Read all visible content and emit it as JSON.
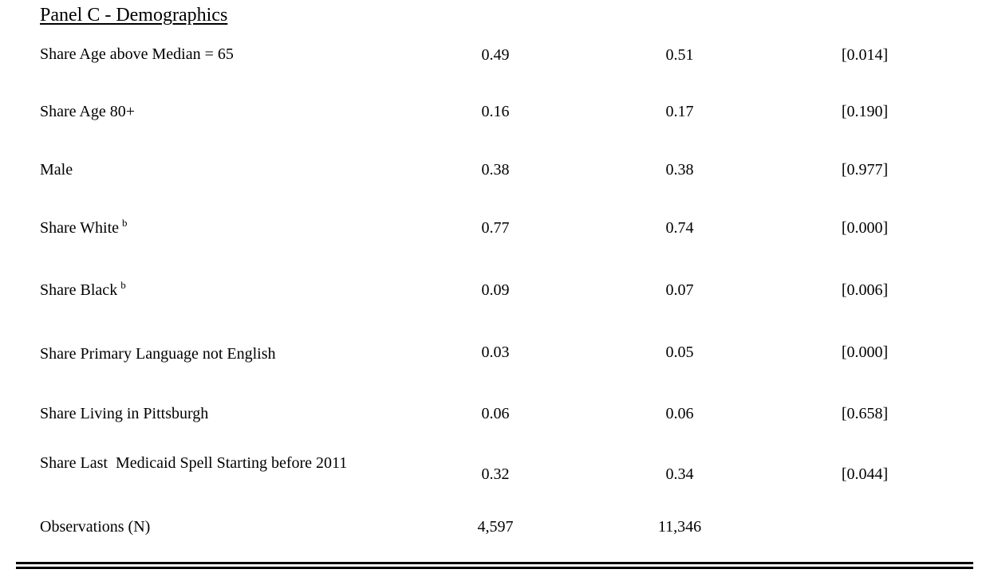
{
  "panel": {
    "title": "Panel C - Demographics"
  },
  "rows": [
    {
      "label": "Share Age above Median = 65",
      "sup": "",
      "col1": "0.49",
      "col2": "0.51",
      "col3": "[0.014]"
    },
    {
      "label": "Share Age 80+",
      "sup": "",
      "col1": "0.16",
      "col2": "0.17",
      "col3": "[0.190]"
    },
    {
      "label": "Male",
      "sup": "",
      "col1": "0.38",
      "col2": "0.38",
      "col3": "[0.977]"
    },
    {
      "label": "Share White",
      "sup": "b",
      "col1": "0.77",
      "col2": "0.74",
      "col3": "[0.000]"
    },
    {
      "label": "Share Black",
      "sup": "b",
      "col1": "0.09",
      "col2": "0.07",
      "col3": "[0.006]"
    },
    {
      "label": "Share Primary Language not English",
      "sup": "",
      "col1": "0.03",
      "col2": "0.05",
      "col3": "[0.000]"
    },
    {
      "label": "Share Living in Pittsburgh",
      "sup": "",
      "col1": "0.06",
      "col2": "0.06",
      "col3": "[0.658]"
    },
    {
      "label": "Share Last  Medicaid Spell Starting before 2011",
      "sup": "",
      "col1": "0.32",
      "col2": "0.34",
      "col3": "[0.044]"
    }
  ],
  "observations": {
    "label": "Observations (N)",
    "col1": "4,597",
    "col2": "11,346"
  }
}
